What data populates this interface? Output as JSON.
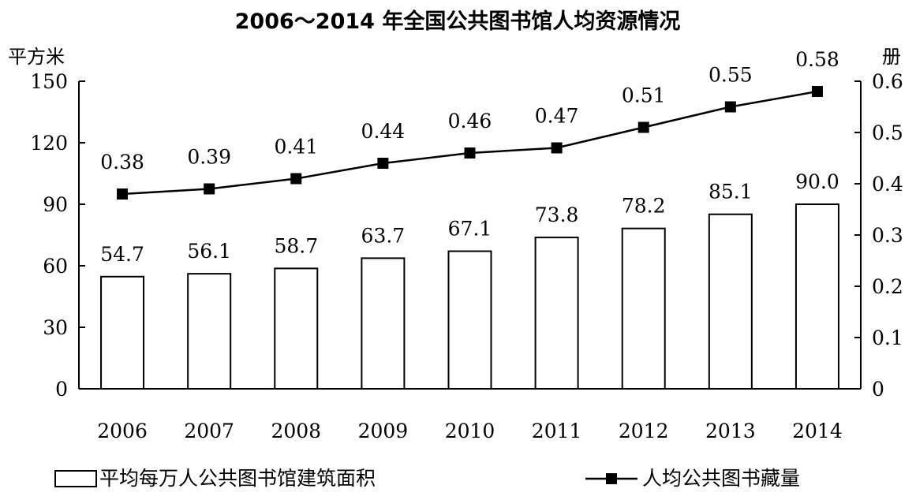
{
  "chart_data": {
    "type": "bar+line",
    "title": "2006～2014 年全国公共图书馆人均资源情况",
    "categories": [
      "2006",
      "2007",
      "2008",
      "2009",
      "2010",
      "2011",
      "2012",
      "2013",
      "2014"
    ],
    "y_left": {
      "unit": "平方米",
      "ylim": [
        0,
        150
      ],
      "ticks": [
        "0",
        "30",
        "60",
        "90",
        "120",
        "150"
      ]
    },
    "y_right": {
      "unit": "册",
      "ylim": [
        0,
        0.6
      ],
      "ticks": [
        "0",
        "0.1",
        "0.2",
        "0.3",
        "0.4",
        "0.5",
        "0.6"
      ]
    },
    "series": [
      {
        "name": "平均每万人公共图书馆建筑面积",
        "type": "bar",
        "axis": "left",
        "values": [
          54.7,
          56.1,
          58.7,
          63.7,
          67.1,
          73.8,
          78.2,
          85.1,
          90.0
        ],
        "labels": [
          "54.7",
          "56.1",
          "58.7",
          "63.7",
          "67.1",
          "73.8",
          "78.2",
          "85.1",
          "90.0"
        ]
      },
      {
        "name": "人均公共图书藏量",
        "type": "line",
        "axis": "right",
        "values": [
          0.38,
          0.39,
          0.41,
          0.44,
          0.46,
          0.47,
          0.51,
          0.55,
          0.58
        ],
        "labels": [
          "0.38",
          "0.39",
          "0.41",
          "0.44",
          "0.46",
          "0.47",
          "0.51",
          "0.55",
          "0.58"
        ]
      }
    ],
    "legend_position": "bottom",
    "grid": false
  }
}
